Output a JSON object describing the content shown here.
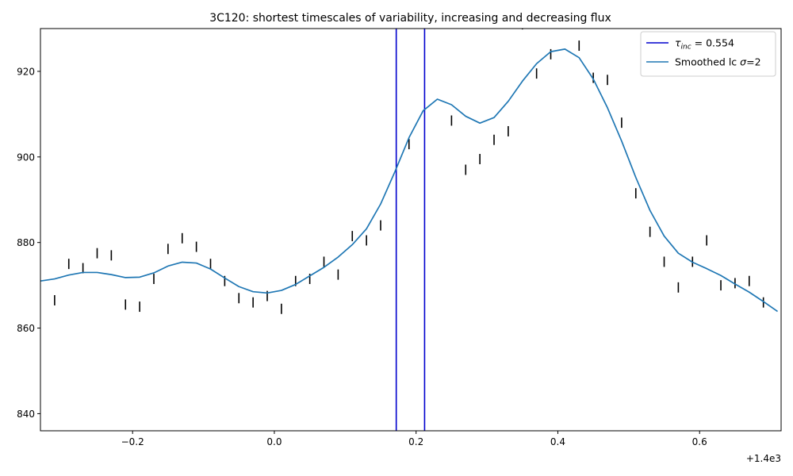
{
  "chart_data": {
    "type": "line",
    "title": "3C120: shortest timescales of variability, increasing and decreasing flux",
    "xlabel": "",
    "ylabel": "",
    "x_offset_label": "+1.4e3",
    "xlim": [
      -0.33,
      0.715
    ],
    "ylim": [
      836,
      930
    ],
    "xticks": [
      -0.2,
      0.0,
      0.2,
      0.4,
      0.6
    ],
    "xtick_labels": [
      "−0.2",
      "0.0",
      "0.2",
      "0.4",
      "0.6"
    ],
    "yticks": [
      840,
      860,
      880,
      900,
      920
    ],
    "ytick_labels": [
      "840",
      "860",
      "880",
      "900",
      "920"
    ],
    "grid": false,
    "legend_position": "top-right",
    "legend": {
      "vline_label": "τ_inc = 0.554",
      "vline_label_tau": "τ",
      "vline_label_sub": "inc",
      "vline_label_rest": " = 0.554",
      "smooth_label": "Smoothed lc σ=2",
      "smooth_label_main": "Smoothed lc ",
      "smooth_label_sigma": "σ",
      "smooth_label_rest": "=2"
    },
    "vlines": [
      0.172,
      0.212
    ],
    "observations": {
      "name": "",
      "x": [
        -0.31,
        -0.29,
        -0.27,
        -0.25,
        -0.23,
        -0.21,
        -0.19,
        -0.17,
        -0.15,
        -0.13,
        -0.11,
        -0.09,
        -0.07,
        -0.05,
        -0.03,
        -0.01,
        0.01,
        0.03,
        0.05,
        0.07,
        0.09,
        0.11,
        0.13,
        0.15,
        0.19,
        0.25,
        0.27,
        0.29,
        0.31,
        0.33,
        0.35,
        0.37,
        0.39,
        0.43,
        0.45,
        0.47,
        0.49,
        0.51,
        0.53,
        0.55,
        0.57,
        0.59,
        0.61,
        0.63,
        0.65,
        0.67,
        0.69
      ],
      "y": [
        866.5,
        875,
        874,
        877.5,
        877,
        865.5,
        865,
        871.5,
        878.5,
        881,
        879,
        875,
        871,
        867,
        866,
        867.5,
        864.5,
        871,
        871.5,
        875.5,
        872.5,
        881.5,
        880.5,
        884,
        903,
        908.5,
        897,
        899.5,
        904,
        906,
        931,
        919.5,
        924,
        926,
        918.5,
        918,
        908,
        891.5,
        882.5,
        875.5,
        869.5,
        875.5,
        880.5,
        870,
        870.5,
        871,
        866
      ],
      "error": 1.2,
      "color": "#000000"
    },
    "smoothed": {
      "name": "Smoothed lc σ=2",
      "color": "#1f77b4",
      "x": [
        -0.33,
        -0.31,
        -0.29,
        -0.27,
        -0.25,
        -0.23,
        -0.21,
        -0.19,
        -0.17,
        -0.15,
        -0.13,
        -0.11,
        -0.09,
        -0.07,
        -0.05,
        -0.03,
        -0.01,
        0.01,
        0.03,
        0.05,
        0.07,
        0.09,
        0.11,
        0.13,
        0.15,
        0.17,
        0.19,
        0.21,
        0.23,
        0.25,
        0.27,
        0.29,
        0.31,
        0.33,
        0.35,
        0.37,
        0.39,
        0.41,
        0.43,
        0.45,
        0.47,
        0.49,
        0.51,
        0.53,
        0.55,
        0.57,
        0.59,
        0.61,
        0.63,
        0.65,
        0.67,
        0.69,
        0.71
      ],
      "y": [
        871,
        871.5,
        872.4,
        873,
        873,
        872.5,
        871.8,
        871.9,
        872.9,
        874.5,
        875.4,
        875.2,
        873.8,
        871.7,
        869.7,
        868.5,
        868.2,
        868.8,
        870.2,
        872.2,
        874.2,
        876.6,
        879.5,
        883.2,
        889,
        896.5,
        904.5,
        910.8,
        913.5,
        912.2,
        909.5,
        907.9,
        909.2,
        913,
        917.7,
        921.8,
        924.6,
        925.2,
        923.2,
        918.2,
        911.5,
        903.7,
        895.2,
        887.5,
        881.5,
        877.5,
        875.4,
        873.9,
        872.3,
        870.3,
        868.4,
        866.2,
        863.9
      ]
    },
    "vline_color": "#0000cd"
  }
}
